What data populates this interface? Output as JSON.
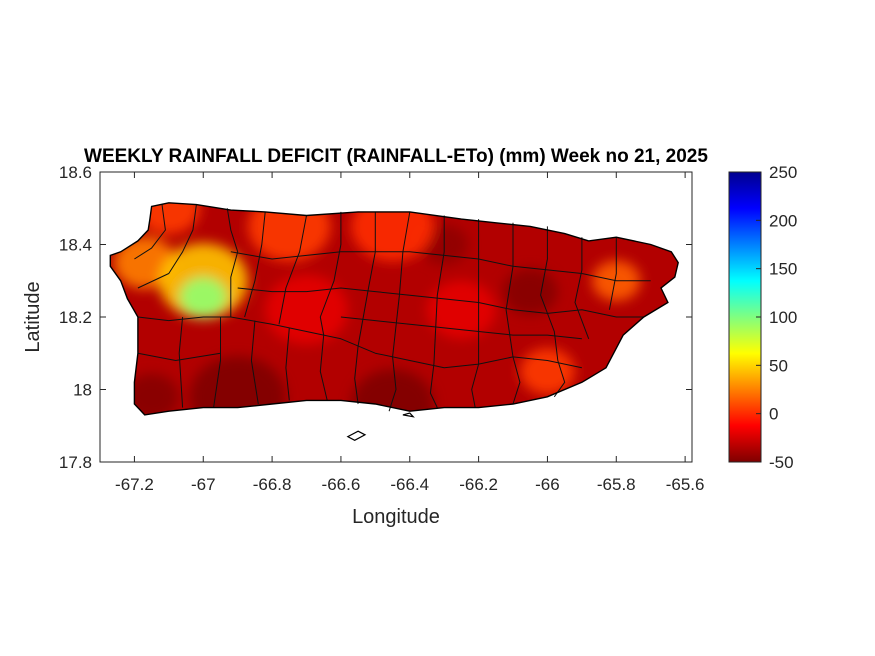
{
  "title": "WEEKLY RAINFALL DEFICIT (RAINFALL-ETo) (mm) Week no 21, 2025",
  "map": {
    "xlabel": "Longitude",
    "ylabel": "Latitude",
    "xlim": [
      -67.3,
      -65.58
    ],
    "ylim": [
      17.8,
      18.6
    ],
    "xticks": [
      {
        "v": -67.2,
        "t": "-67.2"
      },
      {
        "v": -67.0,
        "t": "-67"
      },
      {
        "v": -66.8,
        "t": "-66.8"
      },
      {
        "v": -66.6,
        "t": "-66.6"
      },
      {
        "v": -66.4,
        "t": "-66.4"
      },
      {
        "v": -66.2,
        "t": "-66.2"
      },
      {
        "v": -66.0,
        "t": "-66"
      },
      {
        "v": -65.8,
        "t": "-65.8"
      },
      {
        "v": -65.6,
        "t": "-65.6"
      }
    ],
    "yticks": [
      {
        "v": 17.8,
        "t": "17.8"
      },
      {
        "v": 18.0,
        "t": "18"
      },
      {
        "v": 18.2,
        "t": "18.2"
      },
      {
        "v": 18.4,
        "t": "18.4"
      },
      {
        "v": 18.6,
        "t": "18.6"
      }
    ]
  },
  "colorbar": {
    "min": -50,
    "max": 250,
    "ticks": [
      {
        "v": -50,
        "t": "-50"
      },
      {
        "v": 0,
        "t": "0"
      },
      {
        "v": 50,
        "t": "50"
      },
      {
        "v": 100,
        "t": "100"
      },
      {
        "v": 150,
        "t": "150"
      },
      {
        "v": 200,
        "t": "200"
      },
      {
        "v": 250,
        "t": "250"
      }
    ],
    "colormap": "jet-reversed",
    "colors": [
      "#7f0000",
      "#ff0000",
      "#ff8000",
      "#ffff00",
      "#80ff80",
      "#00ffff",
      "#0080ff",
      "#0000ff",
      "#00008f"
    ]
  },
  "field": {
    "base_value": -35,
    "zones": [
      {
        "lon": -67.0,
        "lat": 18.255,
        "value": 95,
        "r": 0.07
      },
      {
        "lon": -67.0,
        "lat": 18.3,
        "value": 45,
        "r": 0.13
      },
      {
        "lon": -67.17,
        "lat": 18.35,
        "value": 25,
        "r": 0.09
      },
      {
        "lon": -67.1,
        "lat": 18.5,
        "value": 5,
        "r": 0.09
      },
      {
        "lon": -66.75,
        "lat": 18.45,
        "value": 5,
        "r": 0.12
      },
      {
        "lon": -66.45,
        "lat": 18.45,
        "value": 0,
        "r": 0.12
      },
      {
        "lon": -65.8,
        "lat": 18.3,
        "value": 15,
        "r": 0.07
      },
      {
        "lon": -66.0,
        "lat": 18.05,
        "value": 5,
        "r": 0.08
      },
      {
        "lon": -66.25,
        "lat": 18.22,
        "value": -20,
        "r": 0.1
      },
      {
        "lon": -66.7,
        "lat": 18.22,
        "value": -20,
        "r": 0.12
      },
      {
        "lon": -66.05,
        "lat": 18.27,
        "value": -48,
        "r": 0.08
      },
      {
        "lon": -66.3,
        "lat": 18.4,
        "value": -45,
        "r": 0.07
      },
      {
        "lon": -66.9,
        "lat": 17.98,
        "value": -50,
        "r": 0.14
      },
      {
        "lon": -67.15,
        "lat": 17.98,
        "value": -48,
        "r": 0.08
      },
      {
        "lon": -66.45,
        "lat": 17.96,
        "value": -50,
        "r": 0.12
      }
    ]
  },
  "island_outline": [
    [
      -67.27,
      18.37
    ],
    [
      -67.24,
      18.38
    ],
    [
      -67.19,
      18.41
    ],
    [
      -67.16,
      18.44
    ],
    [
      -67.155,
      18.47
    ],
    [
      -67.15,
      18.505
    ],
    [
      -67.1,
      18.515
    ],
    [
      -67.02,
      18.51
    ],
    [
      -66.92,
      18.495
    ],
    [
      -66.82,
      18.49
    ],
    [
      -66.7,
      18.48
    ],
    [
      -66.55,
      18.49
    ],
    [
      -66.4,
      18.49
    ],
    [
      -66.25,
      18.47
    ],
    [
      -66.15,
      18.46
    ],
    [
      -66.05,
      18.45
    ],
    [
      -65.95,
      18.43
    ],
    [
      -65.88,
      18.41
    ],
    [
      -65.8,
      18.42
    ],
    [
      -65.7,
      18.4
    ],
    [
      -65.64,
      18.38
    ],
    [
      -65.62,
      18.35
    ],
    [
      -65.63,
      18.31
    ],
    [
      -65.67,
      18.28
    ],
    [
      -65.65,
      18.24
    ],
    [
      -65.72,
      18.2
    ],
    [
      -65.78,
      18.15
    ],
    [
      -65.83,
      18.06
    ],
    [
      -65.9,
      18.02
    ],
    [
      -66.0,
      17.98
    ],
    [
      -66.1,
      17.96
    ],
    [
      -66.2,
      17.95
    ],
    [
      -66.3,
      17.95
    ],
    [
      -66.4,
      17.94
    ],
    [
      -66.5,
      17.96
    ],
    [
      -66.6,
      17.97
    ],
    [
      -66.7,
      17.97
    ],
    [
      -66.8,
      17.96
    ],
    [
      -66.9,
      17.95
    ],
    [
      -67.0,
      17.95
    ],
    [
      -67.1,
      17.94
    ],
    [
      -67.17,
      17.93
    ],
    [
      -67.2,
      17.96
    ],
    [
      -67.2,
      18.02
    ],
    [
      -67.19,
      18.1
    ],
    [
      -67.19,
      18.2
    ],
    [
      -67.22,
      18.25
    ],
    [
      -67.24,
      18.3
    ],
    [
      -67.27,
      18.34
    ]
  ],
  "municipal_boundaries": [
    [
      [
        -67.12,
        18.51
      ],
      [
        -67.11,
        18.44
      ],
      [
        -67.15,
        18.39
      ],
      [
        -67.2,
        18.36
      ]
    ],
    [
      [
        -67.02,
        18.51
      ],
      [
        -67.03,
        18.44
      ],
      [
        -67.06,
        18.38
      ],
      [
        -67.1,
        18.32
      ],
      [
        -67.19,
        18.28
      ]
    ],
    [
      [
        -66.93,
        18.5
      ],
      [
        -66.92,
        18.44
      ],
      [
        -66.9,
        18.38
      ],
      [
        -66.92,
        18.31
      ],
      [
        -66.92,
        18.2
      ]
    ],
    [
      [
        -67.19,
        18.2
      ],
      [
        -67.1,
        18.19
      ],
      [
        -67.0,
        18.2
      ],
      [
        -66.92,
        18.2
      ],
      [
        -66.8,
        18.18
      ],
      [
        -66.7,
        18.16
      ],
      [
        -66.6,
        18.14
      ],
      [
        -66.5,
        18.1
      ],
      [
        -66.4,
        18.08
      ],
      [
        -66.3,
        18.06
      ],
      [
        -66.2,
        18.07
      ],
      [
        -66.1,
        18.09
      ],
      [
        -66.0,
        18.08
      ],
      [
        -65.9,
        18.06
      ]
    ],
    [
      [
        -67.19,
        18.1
      ],
      [
        -67.08,
        18.08
      ],
      [
        -66.95,
        18.1
      ]
    ],
    [
      [
        -67.06,
        18.2
      ],
      [
        -67.07,
        18.1
      ],
      [
        -67.06,
        17.95
      ]
    ],
    [
      [
        -66.95,
        18.2
      ],
      [
        -66.95,
        18.08
      ],
      [
        -66.97,
        17.95
      ]
    ],
    [
      [
        -66.85,
        18.19
      ],
      [
        -66.86,
        18.08
      ],
      [
        -66.84,
        17.96
      ]
    ],
    [
      [
        -66.75,
        18.17
      ],
      [
        -66.76,
        18.06
      ],
      [
        -66.75,
        17.97
      ]
    ],
    [
      [
        -66.65,
        18.15
      ],
      [
        -66.66,
        18.05
      ],
      [
        -66.64,
        17.97
      ]
    ],
    [
      [
        -66.55,
        18.12
      ],
      [
        -66.56,
        18.03
      ],
      [
        -66.55,
        17.96
      ]
    ],
    [
      [
        -66.45,
        18.09
      ],
      [
        -66.44,
        18.0
      ],
      [
        -66.46,
        17.94
      ]
    ],
    [
      [
        -66.33,
        18.07
      ],
      [
        -66.34,
        17.99
      ],
      [
        -66.32,
        17.95
      ]
    ],
    [
      [
        -66.2,
        18.07
      ],
      [
        -66.22,
        18.0
      ],
      [
        -66.21,
        17.95
      ]
    ],
    [
      [
        -66.1,
        18.09
      ],
      [
        -66.08,
        18.02
      ],
      [
        -66.1,
        17.96
      ]
    ],
    [
      [
        -65.97,
        18.08
      ],
      [
        -65.95,
        18.02
      ],
      [
        -65.98,
        17.98
      ]
    ],
    [
      [
        -66.82,
        18.49
      ],
      [
        -66.83,
        18.4
      ],
      [
        -66.85,
        18.3
      ],
      [
        -66.88,
        18.2
      ]
    ],
    [
      [
        -66.7,
        18.48
      ],
      [
        -66.72,
        18.38
      ],
      [
        -66.76,
        18.28
      ],
      [
        -66.78,
        18.18
      ]
    ],
    [
      [
        -66.6,
        18.49
      ],
      [
        -66.6,
        18.4
      ],
      [
        -66.62,
        18.3
      ],
      [
        -66.66,
        18.2
      ],
      [
        -66.65,
        18.15
      ]
    ],
    [
      [
        -66.5,
        18.49
      ],
      [
        -66.5,
        18.38
      ],
      [
        -66.52,
        18.28
      ],
      [
        -66.55,
        18.12
      ]
    ],
    [
      [
        -66.4,
        18.49
      ],
      [
        -66.42,
        18.38
      ],
      [
        -66.43,
        18.26
      ],
      [
        -66.45,
        18.09
      ]
    ],
    [
      [
        -66.3,
        18.48
      ],
      [
        -66.3,
        18.38
      ],
      [
        -66.32,
        18.26
      ],
      [
        -66.33,
        18.07
      ]
    ],
    [
      [
        -66.2,
        18.47
      ],
      [
        -66.2,
        18.36
      ],
      [
        -66.2,
        18.24
      ],
      [
        -66.2,
        18.07
      ]
    ],
    [
      [
        -66.1,
        18.46
      ],
      [
        -66.1,
        18.34
      ],
      [
        -66.12,
        18.22
      ],
      [
        -66.1,
        18.09
      ]
    ],
    [
      [
        -66.0,
        18.45
      ],
      [
        -66.0,
        18.36
      ],
      [
        -66.02,
        18.26
      ],
      [
        -65.98,
        18.16
      ],
      [
        -65.97,
        18.08
      ]
    ],
    [
      [
        -65.9,
        18.42
      ],
      [
        -65.9,
        18.33
      ],
      [
        -65.92,
        18.24
      ],
      [
        -65.88,
        18.14
      ]
    ],
    [
      [
        -65.8,
        18.42
      ],
      [
        -65.8,
        18.32
      ],
      [
        -65.82,
        18.22
      ]
    ],
    [
      [
        -66.92,
        18.38
      ],
      [
        -66.8,
        18.36
      ],
      [
        -66.7,
        18.37
      ],
      [
        -66.6,
        18.38
      ],
      [
        -66.5,
        18.38
      ],
      [
        -66.4,
        18.38
      ],
      [
        -66.3,
        18.37
      ],
      [
        -66.2,
        18.36
      ],
      [
        -66.1,
        18.34
      ],
      [
        -66.0,
        18.33
      ],
      [
        -65.9,
        18.32
      ],
      [
        -65.8,
        18.3
      ],
      [
        -65.7,
        18.3
      ]
    ],
    [
      [
        -66.9,
        18.28
      ],
      [
        -66.8,
        18.27
      ],
      [
        -66.7,
        18.27
      ],
      [
        -66.6,
        18.28
      ],
      [
        -66.5,
        18.27
      ],
      [
        -66.4,
        18.26
      ],
      [
        -66.3,
        18.25
      ],
      [
        -66.2,
        18.24
      ],
      [
        -66.1,
        18.22
      ],
      [
        -66.0,
        18.21
      ],
      [
        -65.9,
        18.22
      ],
      [
        -65.8,
        18.2
      ],
      [
        -65.72,
        18.2
      ]
    ],
    [
      [
        -66.6,
        18.2
      ],
      [
        -66.5,
        18.19
      ],
      [
        -66.4,
        18.18
      ],
      [
        -66.3,
        18.17
      ],
      [
        -66.2,
        18.16
      ],
      [
        -66.1,
        18.15
      ],
      [
        -66.0,
        18.15
      ],
      [
        -65.9,
        18.14
      ]
    ]
  ],
  "small_islands": [
    [
      [
        -66.58,
        17.87
      ],
      [
        -66.55,
        17.885
      ],
      [
        -66.53,
        17.875
      ],
      [
        -66.56,
        17.86
      ]
    ],
    [
      [
        -66.42,
        17.93
      ],
      [
        -66.4,
        17.935
      ],
      [
        -66.39,
        17.925
      ]
    ]
  ]
}
